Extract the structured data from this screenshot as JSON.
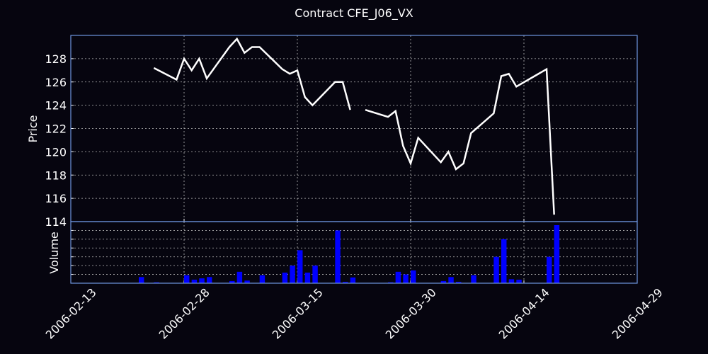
{
  "chart_data": [
    {
      "type": "line",
      "title": "Contract CFE_J06_VX",
      "ylabel": "Price",
      "color": "#ffffff",
      "grid": true,
      "x": [
        "2006-02-24",
        "2006-02-27",
        "2006-02-28",
        "2006-03-01",
        "2006-03-02",
        "2006-03-03",
        "2006-03-06",
        "2006-03-07",
        "2006-03-08",
        "2006-03-09",
        "2006-03-10",
        "2006-03-13",
        "2006-03-14",
        "2006-03-15",
        "2006-03-16",
        "2006-03-17",
        "2006-03-20",
        "2006-03-21",
        "2006-03-22",
        "2006-03-23",
        "2006-03-24",
        "2006-03-27",
        "2006-03-28",
        "2006-03-29",
        "2006-03-30",
        "2006-03-31",
        "2006-04-03",
        "2006-04-04",
        "2006-04-05",
        "2006-04-06",
        "2006-04-07",
        "2006-04-10",
        "2006-04-11",
        "2006-04-12",
        "2006-04-13",
        "2006-04-17",
        "2006-04-18"
      ],
      "values": [
        127.2,
        126.2,
        128.0,
        127.0,
        128.0,
        126.3,
        129.0,
        129.7,
        128.5,
        129.0,
        129.0,
        127.1,
        126.7,
        127.0,
        124.7,
        124.0,
        126.0,
        126.0,
        123.6,
        null,
        123.6,
        123.0,
        123.5,
        120.5,
        119.0,
        121.2,
        119.1,
        120.0,
        118.5,
        119.0,
        121.6,
        123.3,
        126.5,
        126.7,
        125.6,
        127.1,
        114.6
      ],
      "xlim": [
        "2006-02-13",
        "2006-04-29"
      ],
      "xticks": [
        "2006-02-13",
        "2006-02-28",
        "2006-03-15",
        "2006-03-30",
        "2006-04-14",
        "2006-04-29"
      ],
      "ylim": [
        114,
        130
      ],
      "yticks": [
        114,
        116,
        118,
        120,
        122,
        124,
        126,
        128
      ]
    },
    {
      "type": "bar",
      "ylabel": "Volume",
      "color": "#0000ff",
      "grid": true,
      "x": [
        "2006-02-22",
        "2006-02-24",
        "2006-02-28",
        "2006-03-01",
        "2006-03-02",
        "2006-03-03",
        "2006-03-06",
        "2006-03-07",
        "2006-03-08",
        "2006-03-10",
        "2006-03-13",
        "2006-03-14",
        "2006-03-15",
        "2006-03-16",
        "2006-03-17",
        "2006-03-20",
        "2006-03-21",
        "2006-03-22",
        "2006-03-27",
        "2006-03-28",
        "2006-03-29",
        "2006-03-30",
        "2006-04-03",
        "2006-04-04",
        "2006-04-05",
        "2006-04-07",
        "2006-04-10",
        "2006-04-11",
        "2006-04-12",
        "2006-04-13",
        "2006-04-17",
        "2006-04-18"
      ],
      "values": [
        0.7,
        0.1,
        0.9,
        0.4,
        0.55,
        0.7,
        0.25,
        1.3,
        0.3,
        0.9,
        1.2,
        2.0,
        3.75,
        1.2,
        2.0,
        6.0,
        0.15,
        0.65,
        0.1,
        1.3,
        1.0,
        1.45,
        0.25,
        0.7,
        0.15,
        0.9,
        3.0,
        5.0,
        0.45,
        0.4,
        3.0,
        6.6
      ],
      "xlim": [
        "2006-02-13",
        "2006-04-29"
      ],
      "xticks": [
        "2006-02-13",
        "2006-02-28",
        "2006-03-15",
        "2006-03-30",
        "2006-04-14",
        "2006-04-29"
      ],
      "ylim": [
        0,
        7
      ],
      "yticks": [
        1,
        2,
        3,
        4,
        5,
        6
      ]
    }
  ]
}
